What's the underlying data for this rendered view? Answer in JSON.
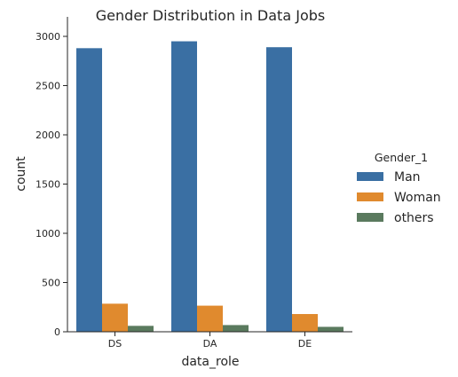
{
  "chart_data": {
    "type": "bar",
    "title": "Gender Distribution in Data Jobs",
    "xlabel": "data_role",
    "ylabel": "count",
    "categories": [
      "DS",
      "DA",
      "DE"
    ],
    "ylim": [
      0,
      3000
    ],
    "yticks": [
      0,
      500,
      1000,
      1500,
      2000,
      2500,
      3000
    ],
    "grid": false,
    "legend": {
      "title": "Gender_1",
      "placement": "right"
    },
    "series": [
      {
        "name": "Man",
        "color": "#3a6fa3",
        "values": [
          2880,
          2950,
          2890
        ]
      },
      {
        "name": "Woman",
        "color": "#e08a2e",
        "values": [
          285,
          265,
          180
        ]
      },
      {
        "name": "others",
        "color": "#5a7a5e",
        "values": [
          60,
          68,
          50
        ]
      }
    ]
  }
}
